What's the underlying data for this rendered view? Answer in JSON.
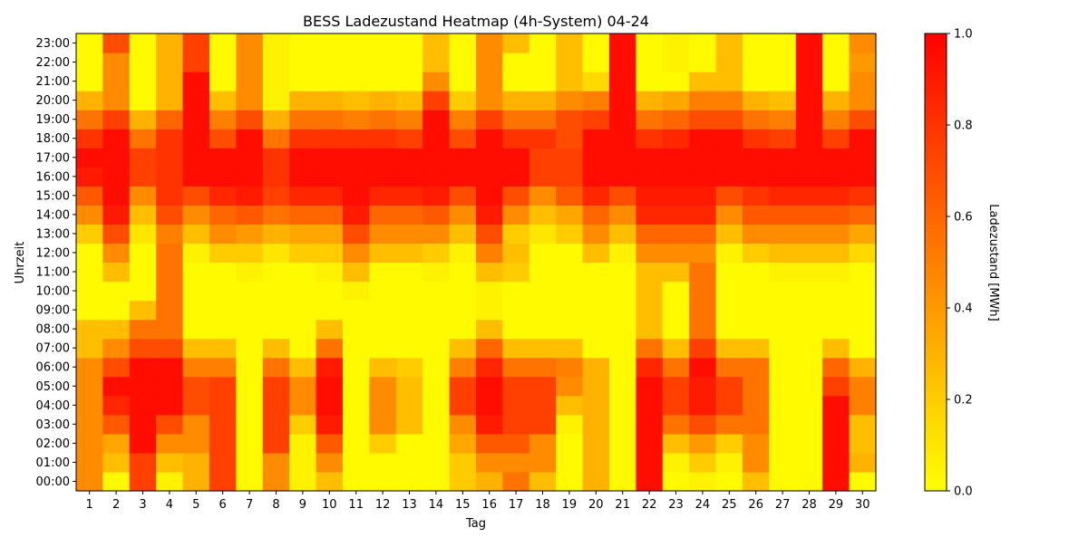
{
  "chart_data": {
    "type": "heatmap",
    "title": "BESS Ladezustand Heatmap (4h-System) 04-24",
    "xlabel": "Tag",
    "ylabel": "Uhrzeit",
    "colorbar_label": "Ladezustand [MWh]",
    "x": [
      "1",
      "2",
      "3",
      "4",
      "5",
      "6",
      "7",
      "8",
      "9",
      "10",
      "11",
      "12",
      "13",
      "14",
      "15",
      "16",
      "17",
      "18",
      "19",
      "20",
      "21",
      "22",
      "23",
      "24",
      "25",
      "26",
      "27",
      "28",
      "29",
      "30"
    ],
    "y": [
      "00:00",
      "01:00",
      "02:00",
      "03:00",
      "04:00",
      "05:00",
      "06:00",
      "07:00",
      "08:00",
      "09:00",
      "10:00",
      "11:00",
      "12:00",
      "13:00",
      "14:00",
      "15:00",
      "16:00",
      "17:00",
      "18:00",
      "19:00",
      "20:00",
      "21:00",
      "22:00",
      "23:00"
    ],
    "vmin": 0.0,
    "vmax": 1.0,
    "colorbar_ticks": [
      "0.0",
      "0.2",
      "0.4",
      "0.6",
      "0.8",
      "1.0"
    ],
    "colormap": "autumn_r",
    "colormap_colors": [
      "#ffff00",
      "#ff0000"
    ],
    "values": [
      [
        0.45,
        0.02,
        0.75,
        0.05,
        0.3,
        0.75,
        0.02,
        0.45,
        0.05,
        0.25,
        0.02,
        0.02,
        0.02,
        0.02,
        0.2,
        0.3,
        0.55,
        0.25,
        0.02,
        0.3,
        0.02,
        0.95,
        0.02,
        0.05,
        0.02,
        0.25,
        0.02,
        0.02,
        0.95,
        0.02
      ],
      [
        0.45,
        0.25,
        0.75,
        0.25,
        0.3,
        0.75,
        0.02,
        0.45,
        0.05,
        0.45,
        0.02,
        0.02,
        0.02,
        0.02,
        0.2,
        0.45,
        0.45,
        0.45,
        0.02,
        0.3,
        0.02,
        0.95,
        0.05,
        0.2,
        0.05,
        0.45,
        0.02,
        0.02,
        0.95,
        0.3
      ],
      [
        0.45,
        0.35,
        0.95,
        0.45,
        0.45,
        0.75,
        0.02,
        0.75,
        0.05,
        0.65,
        0.02,
        0.2,
        0.02,
        0.02,
        0.35,
        0.65,
        0.65,
        0.45,
        0.02,
        0.3,
        0.02,
        0.95,
        0.25,
        0.4,
        0.2,
        0.45,
        0.02,
        0.02,
        0.95,
        0.25
      ],
      [
        0.45,
        0.65,
        0.95,
        0.7,
        0.45,
        0.75,
        0.02,
        0.75,
        0.2,
        0.9,
        0.02,
        0.45,
        0.25,
        0.02,
        0.45,
        0.9,
        0.75,
        0.75,
        0.05,
        0.3,
        0.02,
        0.95,
        0.55,
        0.7,
        0.55,
        0.55,
        0.02,
        0.02,
        0.95,
        0.25
      ],
      [
        0.45,
        0.85,
        0.95,
        0.95,
        0.7,
        0.75,
        0.02,
        0.75,
        0.45,
        0.95,
        0.02,
        0.45,
        0.25,
        0.02,
        0.75,
        0.95,
        0.75,
        0.75,
        0.25,
        0.3,
        0.02,
        0.95,
        0.75,
        0.9,
        0.75,
        0.55,
        0.02,
        0.02,
        0.95,
        0.5
      ],
      [
        0.45,
        0.95,
        0.95,
        0.95,
        0.7,
        0.75,
        0.02,
        0.75,
        0.45,
        0.95,
        0.02,
        0.45,
        0.25,
        0.02,
        0.75,
        0.95,
        0.75,
        0.75,
        0.45,
        0.3,
        0.02,
        0.95,
        0.75,
        0.9,
        0.75,
        0.55,
        0.02,
        0.02,
        0.75,
        0.5
      ],
      [
        0.45,
        0.7,
        0.95,
        0.95,
        0.5,
        0.5,
        0.02,
        0.55,
        0.25,
        0.9,
        0.02,
        0.25,
        0.2,
        0.02,
        0.5,
        0.85,
        0.55,
        0.55,
        0.5,
        0.3,
        0.02,
        0.85,
        0.55,
        0.95,
        0.55,
        0.55,
        0.02,
        0.02,
        0.6,
        0.3
      ],
      [
        0.25,
        0.45,
        0.7,
        0.7,
        0.25,
        0.25,
        0.02,
        0.25,
        0.02,
        0.55,
        0.02,
        0.02,
        0.02,
        0.02,
        0.25,
        0.6,
        0.25,
        0.25,
        0.25,
        0.02,
        0.02,
        0.55,
        0.25,
        0.75,
        0.25,
        0.25,
        0.02,
        0.02,
        0.25,
        0.02
      ],
      [
        0.25,
        0.25,
        0.55,
        0.55,
        0.02,
        0.02,
        0.02,
        0.02,
        0.02,
        0.25,
        0.02,
        0.02,
        0.02,
        0.02,
        0.02,
        0.25,
        0.02,
        0.02,
        0.02,
        0.02,
        0.02,
        0.25,
        0.02,
        0.55,
        0.02,
        0.02,
        0.02,
        0.02,
        0.02,
        0.02
      ],
      [
        0.02,
        0.02,
        0.25,
        0.55,
        0.02,
        0.02,
        0.02,
        0.02,
        0.02,
        0.02,
        0.02,
        0.02,
        0.02,
        0.02,
        0.02,
        0.05,
        0.02,
        0.02,
        0.02,
        0.02,
        0.02,
        0.25,
        0.02,
        0.55,
        0.02,
        0.02,
        0.02,
        0.02,
        0.02,
        0.02
      ],
      [
        0.02,
        0.02,
        0.02,
        0.55,
        0.02,
        0.02,
        0.02,
        0.02,
        0.02,
        0.02,
        0.05,
        0.02,
        0.02,
        0.02,
        0.02,
        0.05,
        0.02,
        0.02,
        0.02,
        0.02,
        0.02,
        0.25,
        0.02,
        0.55,
        0.02,
        0.02,
        0.02,
        0.02,
        0.02,
        0.02
      ],
      [
        0.02,
        0.25,
        0.02,
        0.55,
        0.02,
        0.02,
        0.05,
        0.02,
        0.02,
        0.05,
        0.25,
        0.02,
        0.02,
        0.05,
        0.02,
        0.25,
        0.2,
        0.02,
        0.02,
        0.02,
        0.02,
        0.25,
        0.25,
        0.55,
        0.02,
        0.02,
        0.05,
        0.05,
        0.05,
        0.02
      ],
      [
        0.02,
        0.45,
        0.02,
        0.55,
        0.05,
        0.2,
        0.2,
        0.1,
        0.2,
        0.2,
        0.45,
        0.25,
        0.25,
        0.2,
        0.05,
        0.5,
        0.25,
        0.02,
        0.02,
        0.25,
        0.05,
        0.45,
        0.45,
        0.45,
        0.05,
        0.2,
        0.25,
        0.25,
        0.25,
        0.15
      ],
      [
        0.2,
        0.7,
        0.1,
        0.5,
        0.25,
        0.45,
        0.4,
        0.3,
        0.35,
        0.35,
        0.7,
        0.45,
        0.45,
        0.45,
        0.25,
        0.7,
        0.2,
        0.1,
        0.2,
        0.45,
        0.25,
        0.6,
        0.6,
        0.6,
        0.25,
        0.45,
        0.45,
        0.45,
        0.45,
        0.35
      ],
      [
        0.45,
        0.9,
        0.25,
        0.7,
        0.45,
        0.6,
        0.65,
        0.55,
        0.6,
        0.6,
        0.9,
        0.6,
        0.6,
        0.65,
        0.45,
        0.9,
        0.45,
        0.25,
        0.35,
        0.6,
        0.45,
        0.85,
        0.85,
        0.85,
        0.45,
        0.65,
        0.65,
        0.65,
        0.65,
        0.6
      ],
      [
        0.65,
        0.95,
        0.45,
        0.8,
        0.7,
        0.85,
        0.9,
        0.75,
        0.85,
        0.85,
        0.95,
        0.85,
        0.85,
        0.9,
        0.7,
        0.95,
        0.7,
        0.45,
        0.65,
        0.85,
        0.7,
        0.9,
        0.9,
        0.9,
        0.7,
        0.8,
        0.85,
        0.85,
        0.85,
        0.8
      ],
      [
        0.9,
        0.95,
        0.75,
        0.8,
        0.95,
        0.95,
        0.95,
        0.8,
        0.95,
        0.95,
        0.95,
        0.95,
        0.95,
        0.95,
        0.95,
        0.95,
        0.95,
        0.75,
        0.75,
        0.95,
        0.95,
        0.95,
        0.95,
        0.95,
        0.95,
        0.95,
        0.95,
        0.95,
        0.95,
        0.95
      ],
      [
        0.95,
        0.95,
        0.75,
        0.8,
        0.95,
        0.95,
        0.95,
        0.8,
        0.95,
        0.95,
        0.95,
        0.95,
        0.95,
        0.95,
        0.95,
        0.95,
        0.95,
        0.75,
        0.75,
        0.95,
        0.95,
        0.95,
        0.95,
        0.95,
        0.95,
        0.95,
        0.95,
        0.95,
        0.95,
        0.95
      ],
      [
        0.8,
        0.95,
        0.55,
        0.8,
        0.95,
        0.7,
        0.95,
        0.55,
        0.8,
        0.8,
        0.8,
        0.8,
        0.75,
        0.95,
        0.7,
        0.95,
        0.8,
        0.8,
        0.7,
        0.95,
        0.95,
        0.8,
        0.85,
        0.95,
        0.95,
        0.8,
        0.75,
        0.95,
        0.75,
        0.95
      ],
      [
        0.55,
        0.75,
        0.3,
        0.6,
        0.95,
        0.5,
        0.7,
        0.3,
        0.55,
        0.55,
        0.5,
        0.55,
        0.5,
        0.95,
        0.5,
        0.75,
        0.55,
        0.55,
        0.7,
        0.75,
        0.95,
        0.55,
        0.6,
        0.7,
        0.7,
        0.55,
        0.5,
        0.95,
        0.5,
        0.7
      ],
      [
        0.3,
        0.45,
        0.02,
        0.3,
        0.95,
        0.25,
        0.45,
        0.05,
        0.3,
        0.3,
        0.25,
        0.3,
        0.25,
        0.75,
        0.2,
        0.45,
        0.3,
        0.3,
        0.45,
        0.5,
        0.95,
        0.3,
        0.35,
        0.5,
        0.5,
        0.3,
        0.25,
        0.95,
        0.3,
        0.45
      ],
      [
        0.02,
        0.45,
        0.02,
        0.3,
        0.95,
        0.02,
        0.45,
        0.05,
        0.02,
        0.02,
        0.02,
        0.02,
        0.02,
        0.45,
        0.02,
        0.45,
        0.02,
        0.02,
        0.25,
        0.15,
        0.95,
        0.02,
        0.02,
        0.25,
        0.25,
        0.02,
        0.02,
        0.95,
        0.02,
        0.45
      ],
      [
        0.02,
        0.45,
        0.02,
        0.3,
        0.75,
        0.02,
        0.45,
        0.05,
        0.02,
        0.02,
        0.02,
        0.02,
        0.02,
        0.25,
        0.02,
        0.45,
        0.02,
        0.02,
        0.25,
        0.02,
        0.95,
        0.02,
        0.05,
        0.02,
        0.25,
        0.02,
        0.02,
        0.95,
        0.02,
        0.4
      ],
      [
        0.02,
        0.7,
        0.02,
        0.3,
        0.75,
        0.02,
        0.45,
        0.05,
        0.02,
        0.02,
        0.02,
        0.02,
        0.02,
        0.25,
        0.02,
        0.45,
        0.25,
        0.02,
        0.25,
        0.02,
        0.95,
        0.02,
        0.05,
        0.02,
        0.25,
        0.02,
        0.02,
        0.95,
        0.02,
        0.45
      ]
    ]
  }
}
